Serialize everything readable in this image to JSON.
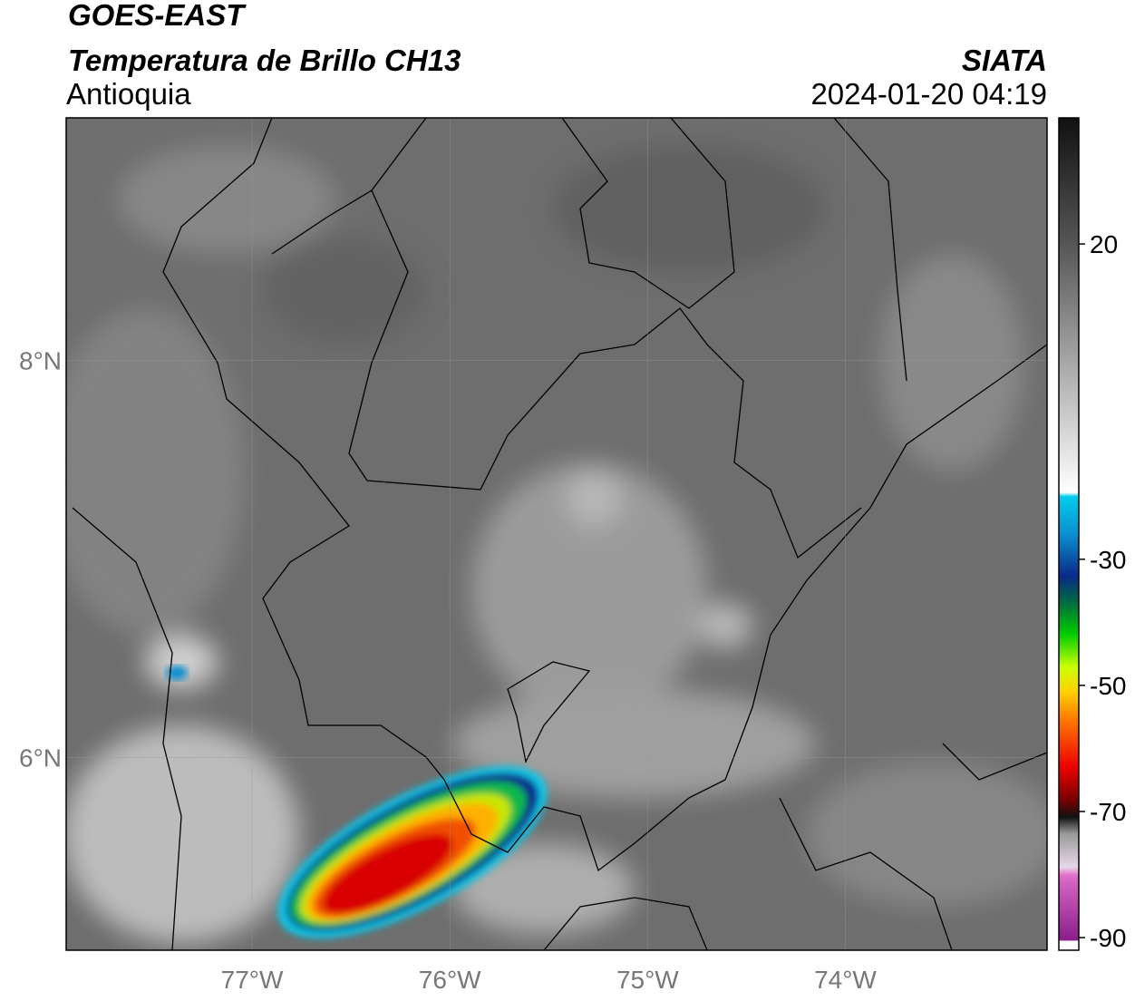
{
  "header": {
    "satellite": "GOES-EAST",
    "product": "Temperatura de Brillo CH13",
    "region": "Antioquia",
    "source": "SIATA",
    "datetime": "2024-01-20 04:19"
  },
  "map": {
    "xlim": [
      -77.94,
      -72.98
    ],
    "ylim": [
      5.03,
      9.22
    ],
    "xticks": [
      {
        "value": -77,
        "label": "77°W"
      },
      {
        "value": -76,
        "label": "76°W"
      },
      {
        "value": -75,
        "label": "75°W"
      },
      {
        "value": -74,
        "label": "74°W"
      }
    ],
    "yticks": [
      {
        "value": 6,
        "label": "6°N"
      },
      {
        "value": 8,
        "label": "8°N"
      }
    ],
    "grid": true
  },
  "colorbar": {
    "lim": [
      -92,
      40
    ],
    "ticks": [
      20,
      -30,
      -50,
      -70,
      -90
    ]
  }
}
